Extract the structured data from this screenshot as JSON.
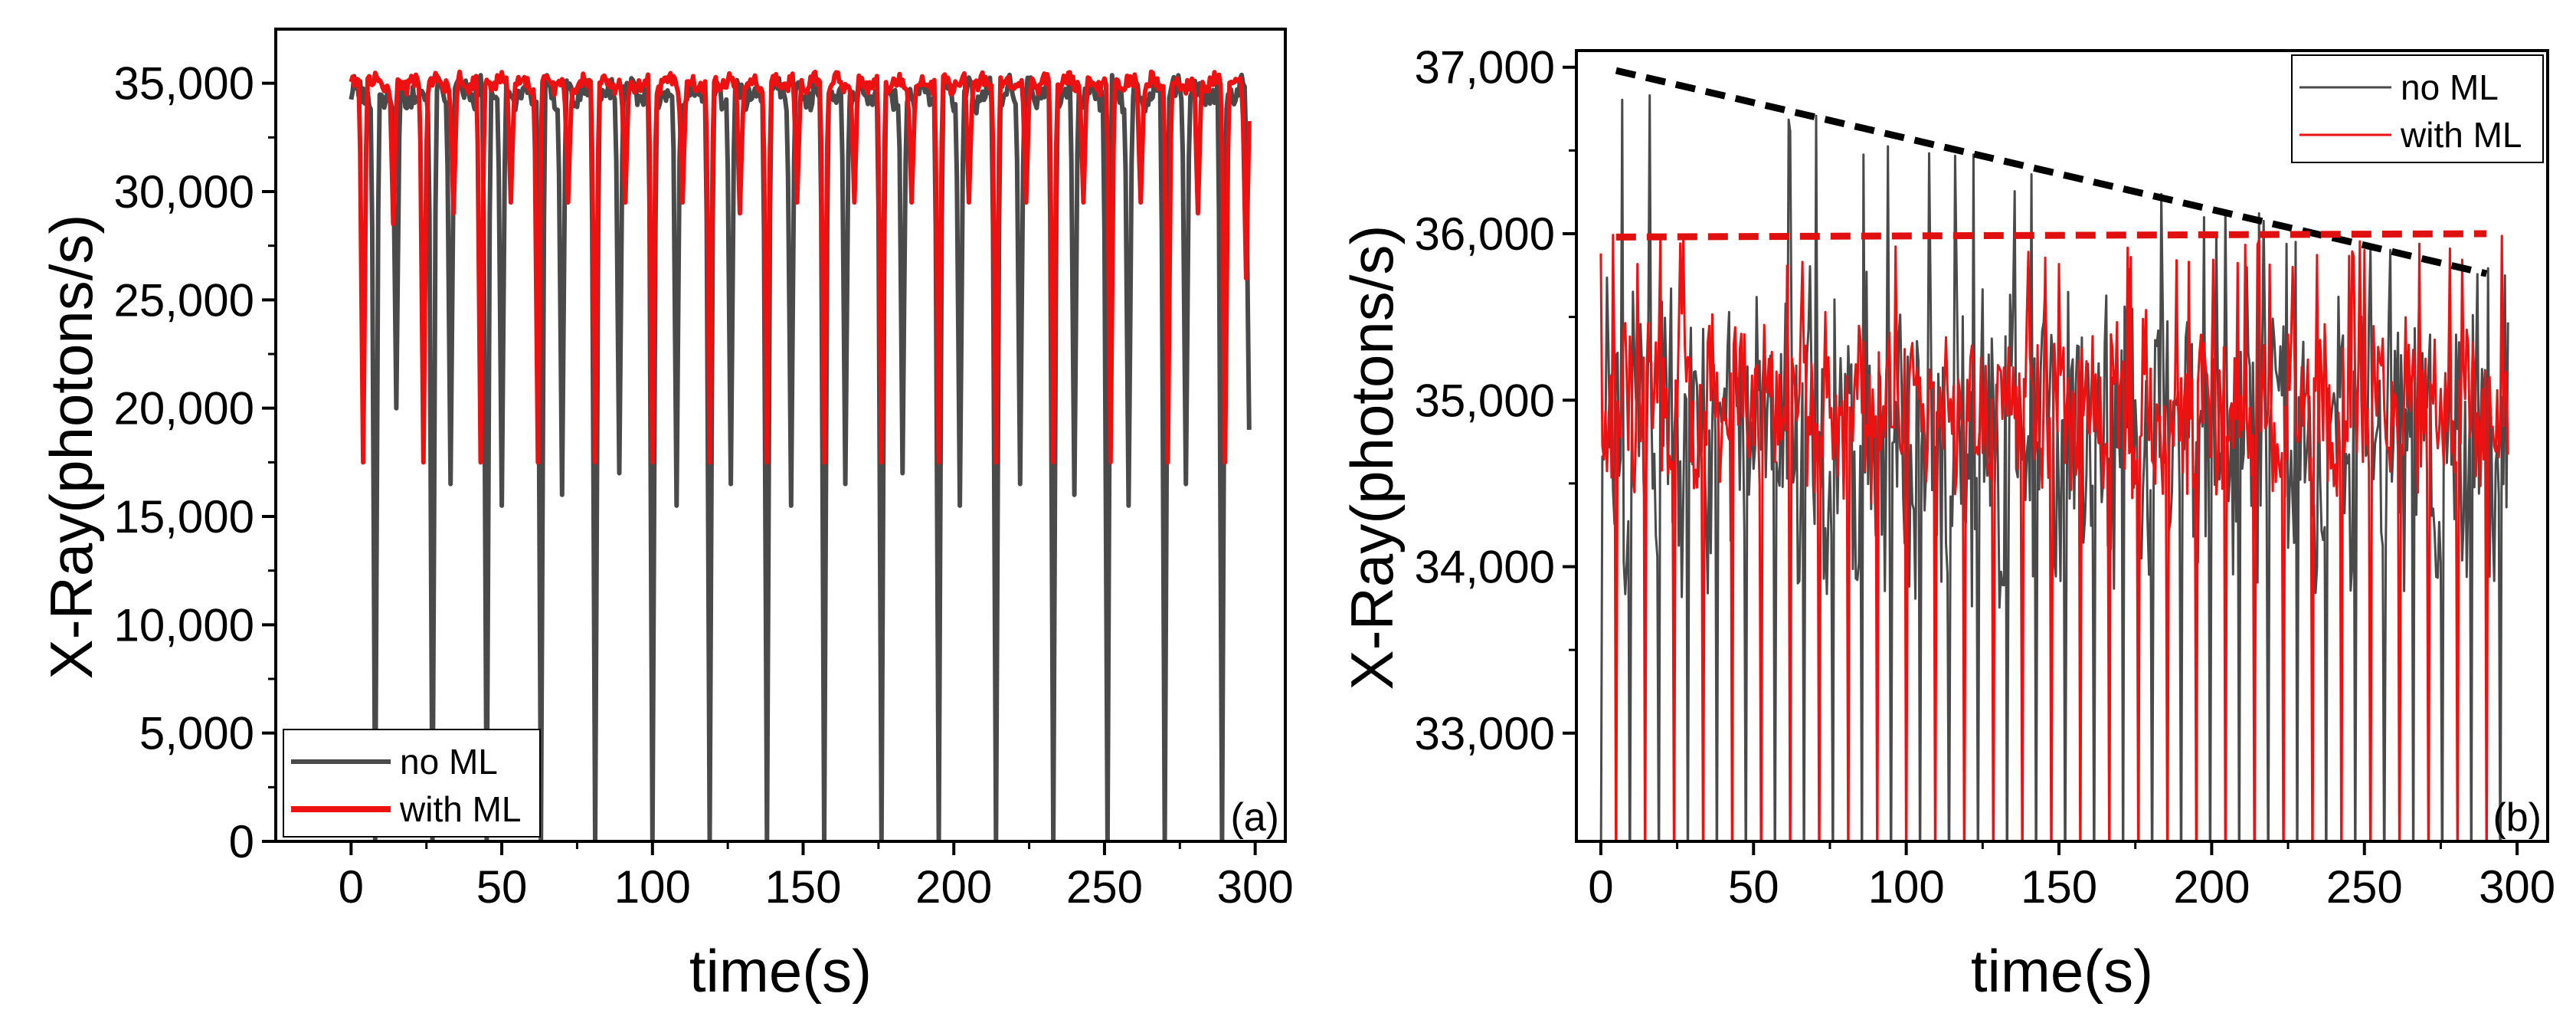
{
  "figure": {
    "colors": {
      "no_ml": "#4a4a4a",
      "with_ml": "#ee1111",
      "trend_no_ml": "#000000",
      "trend_with_ml": "#e01010",
      "axis": "#000000"
    }
  },
  "chart_data": [
    {
      "id": "a",
      "type": "line",
      "panel_label": "(a)",
      "title": "",
      "xlabel": "time(s)",
      "ylabel": "X-Ray(photons/s)",
      "xlim": [
        -25,
        310
      ],
      "ylim": [
        0,
        37500
      ],
      "x_ticks": [
        0,
        50,
        100,
        150,
        200,
        250,
        300
      ],
      "x_tick_labels": [
        "0",
        "50",
        "100",
        "150",
        "200",
        "250",
        "300"
      ],
      "y_ticks": [
        0,
        5000,
        10000,
        15000,
        20000,
        25000,
        30000,
        35000
      ],
      "y_tick_labels": [
        "0",
        "5,000",
        "10,000",
        "15,000",
        "20,000",
        "25,000",
        "30,000",
        "35,000"
      ],
      "legend": {
        "position": "bottom-left",
        "entries": [
          "no ML",
          "with ML"
        ]
      },
      "series": [
        {
          "name": "no ML",
          "color_key": "no_ml",
          "baseline": 34500,
          "noise": 1100,
          "x_start": 0,
          "x_end": 298,
          "x_step": 0.5,
          "dips": [
            [
              8,
              0
            ],
            [
              15,
              20000
            ],
            [
              27,
              0
            ],
            [
              33,
              16500
            ],
            [
              45,
              0
            ],
            [
              50,
              15500
            ],
            [
              63,
              0
            ],
            [
              70,
              16000
            ],
            [
              81,
              0
            ],
            [
              89,
              17000
            ],
            [
              100,
              0
            ],
            [
              108,
              15500
            ],
            [
              119,
              0
            ],
            [
              126,
              16500
            ],
            [
              138,
              0
            ],
            [
              146,
              15500
            ],
            [
              157,
              0
            ],
            [
              164,
              16500
            ],
            [
              176,
              0
            ],
            [
              183,
              17000
            ],
            [
              195,
              0
            ],
            [
              202,
              15500
            ],
            [
              214,
              0
            ],
            [
              222,
              16500
            ],
            [
              233,
              0
            ],
            [
              240,
              16000
            ],
            [
              251,
              0
            ],
            [
              258,
              15500
            ],
            [
              270,
              0
            ],
            [
              277,
              16500
            ],
            [
              289,
              0
            ],
            [
              298,
              19000
            ]
          ]
        },
        {
          "name": "with ML",
          "color_key": "with_ml",
          "baseline": 35000,
          "noise": 650,
          "x_start": 0,
          "x_end": 298,
          "x_step": 0.5,
          "dips": [
            [
              4,
              17500
            ],
            [
              14,
              28500
            ],
            [
              24,
              17500
            ],
            [
              34,
              29000
            ],
            [
              43,
              17500
            ],
            [
              53,
              29500
            ],
            [
              62,
              17500
            ],
            [
              72,
              29500
            ],
            [
              81,
              17500
            ],
            [
              91,
              29500
            ],
            [
              100,
              17500
            ],
            [
              110,
              29500
            ],
            [
              119,
              17500
            ],
            [
              129,
              29000
            ],
            [
              138,
              17500
            ],
            [
              148,
              29500
            ],
            [
              157,
              17500
            ],
            [
              167,
              29500
            ],
            [
              176,
              17500
            ],
            [
              186,
              29500
            ],
            [
              195,
              17500
            ],
            [
              205,
              29500
            ],
            [
              214,
              17500
            ],
            [
              224,
              29500
            ],
            [
              233,
              17500
            ],
            [
              243,
              29500
            ],
            [
              252,
              17500
            ],
            [
              262,
              29500
            ],
            [
              271,
              17500
            ],
            [
              281,
              29000
            ],
            [
              290,
              17500
            ],
            [
              297,
              26000
            ]
          ]
        }
      ]
    },
    {
      "id": "b",
      "type": "line",
      "panel_label": "(b)",
      "title": "",
      "xlabel": "time(s)",
      "ylabel": "X-Ray(photons/s)",
      "xlim": [
        -8,
        310
      ],
      "ylim": [
        32350,
        37100
      ],
      "x_ticks": [
        0,
        50,
        100,
        150,
        200,
        250,
        300
      ],
      "x_tick_labels": [
        "0",
        "50",
        "100",
        "150",
        "200",
        "250",
        "300"
      ],
      "y_ticks": [
        33000,
        34000,
        35000,
        36000,
        37000
      ],
      "y_tick_labels": [
        "33,000",
        "34,000",
        "35,000",
        "36,000",
        "37,000"
      ],
      "legend": {
        "position": "top-right",
        "entries": [
          "no ML",
          "with ML"
        ]
      },
      "series": [
        {
          "name": "no ML",
          "color_key": "no_ml",
          "baseline": 34500,
          "noise": 1150,
          "peak_envelope": [
            37000,
            35800
          ],
          "x_start": 0,
          "x_end": 297,
          "x_step": 0.5,
          "dip_every": 9.5,
          "dip_value": 32000
        },
        {
          "name": "with ML",
          "color_key": "with_ml",
          "baseline": 34800,
          "noise": 650,
          "peak_envelope": [
            36000,
            36000
          ],
          "x_start": 0,
          "x_end": 297,
          "x_step": 0.5,
          "dip_every": 9.5,
          "dip_value": 32000
        }
      ],
      "trend_lines": [
        {
          "name": "no ML peak trend",
          "color_key": "trend_no_ml",
          "dashed": true,
          "points": [
            [
              5,
              36980
            ],
            [
              290,
              35760
            ]
          ]
        },
        {
          "name": "with ML peak trend",
          "color_key": "trend_with_ml",
          "dashed": true,
          "points": [
            [
              5,
              35980
            ],
            [
              290,
              36000
            ]
          ]
        }
      ]
    }
  ]
}
